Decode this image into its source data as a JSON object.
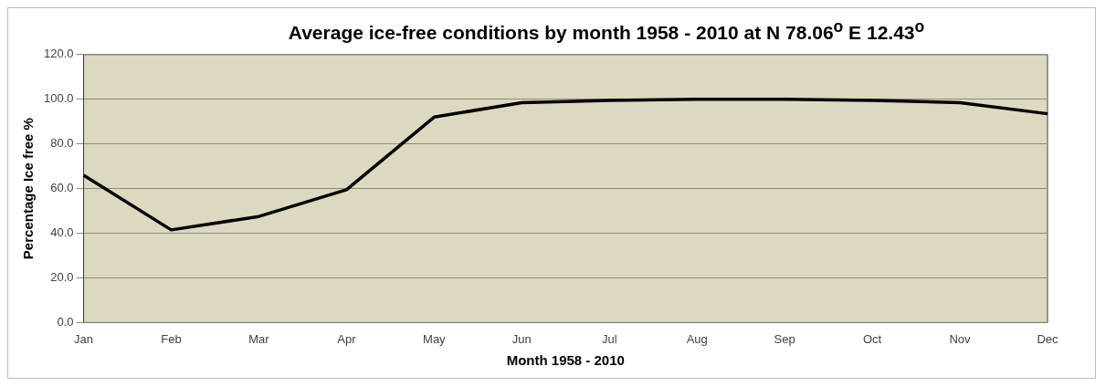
{
  "chart_data": {
    "type": "line",
    "title": "Average ice-free conditions by month 1958 - 2010 at N 78.06$^{o}$ E 12.43$^{o}$",
    "xlabel": "Month 1958 - 2010",
    "ylabel": "Percentage Ice free %",
    "categories": [
      "Jan",
      "Feb",
      "Mar",
      "Apr",
      "May",
      "Jun",
      "Jul",
      "Aug",
      "Sep",
      "Oct",
      "Nov",
      "Dec"
    ],
    "series": [
      {
        "color": "#000000",
        "values": [
          66,
          41.5,
          47.5,
          59.5,
          92,
          98.5,
          99.5,
          100,
          100,
          99.5,
          98.5,
          93.5
        ]
      }
    ],
    "ylim": [
      0,
      120
    ],
    "yticks": [
      {
        "value": 0,
        "label": "0.0"
      },
      {
        "value": 20,
        "label": "20.0"
      },
      {
        "value": 40,
        "label": "40.0"
      },
      {
        "value": 60,
        "label": "60.0"
      },
      {
        "value": 80,
        "label": "80.0"
      },
      {
        "value": 100,
        "label": "100.0"
      },
      {
        "value": 120,
        "label": "120.0"
      }
    ],
    "grid": "y",
    "legend": false,
    "marker": "none",
    "line_style": "solid"
  }
}
